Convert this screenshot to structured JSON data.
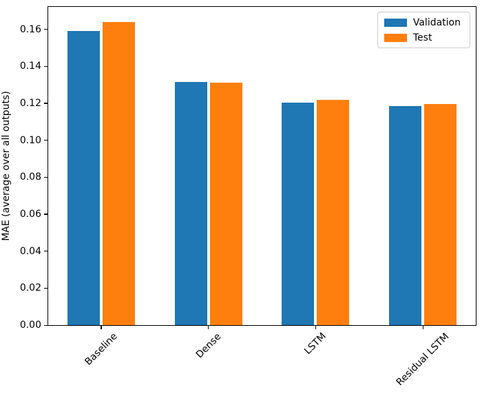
{
  "figure": {
    "kind": "matplotlib-bar-figure",
    "background_color": "#ffffff",
    "spine_color": "#000000"
  },
  "legend": {
    "position": "upper right",
    "entries": [
      {
        "label": "Validation",
        "color": "#1f77b4"
      },
      {
        "label": "Test",
        "color": "#ff7f0e"
      }
    ]
  },
  "chart_data": {
    "type": "bar",
    "title": "",
    "xlabel": "",
    "ylabel": "MAE (average over all outputs)",
    "categories": [
      "Baseline",
      "Dense",
      "LSTM",
      "Residual LSTM"
    ],
    "series": [
      {
        "name": "Validation",
        "color": "#1f77b4",
        "values": [
          0.159,
          0.1315,
          0.1205,
          0.1185
        ]
      },
      {
        "name": "Test",
        "color": "#ff7f0e",
        "values": [
          0.164,
          0.131,
          0.122,
          0.1195
        ]
      }
    ],
    "ylim": [
      0,
      0.1725
    ],
    "yticks": [
      0.0,
      0.02,
      0.04,
      0.06,
      0.08,
      0.1,
      0.12,
      0.14,
      0.16
    ],
    "ytick_decimals": 2,
    "xtick_rotation_deg": 45,
    "grid": false,
    "legend_position": "upper right",
    "bar_colors": {
      "Validation": "#1f77b4",
      "Test": "#ff7f0e"
    }
  }
}
